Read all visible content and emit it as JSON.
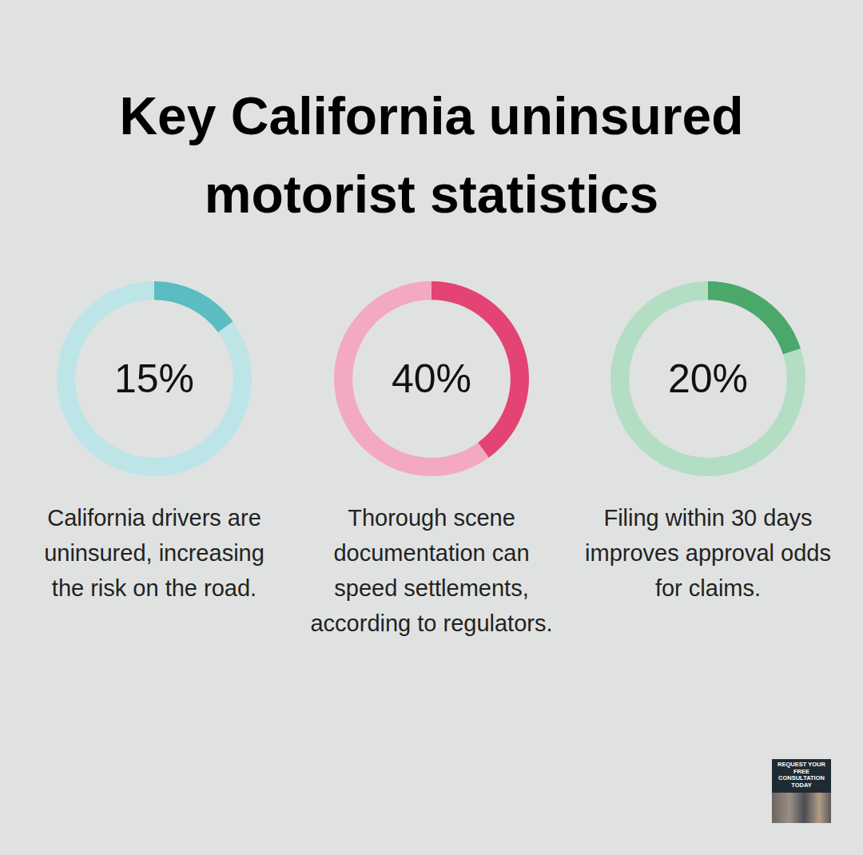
{
  "title": "Key California uninsured motorist statistics",
  "badge": "REQUEST YOUR FREE CONSULTATION TODAY",
  "chart_data": [
    {
      "type": "doughnut",
      "values": [
        15
      ],
      "value_labels": [
        "15%"
      ],
      "ylim": [
        0,
        100
      ],
      "data_labels": true,
      "colors": [
        "#5bbcc1",
        "#bde5e7"
      ],
      "annotation": "California drivers are uninsured, increasing the risk on the road."
    },
    {
      "type": "doughnut",
      "values": [
        40
      ],
      "value_labels": [
        "40%"
      ],
      "ylim": [
        0,
        100
      ],
      "data_labels": true,
      "colors": [
        "#e34474",
        "#f3aac1"
      ],
      "annotation": "Thorough scene documentation can speed settlements, according to regulators."
    },
    {
      "type": "doughnut",
      "values": [
        20
      ],
      "value_labels": [
        "20%"
      ],
      "ylim": [
        0,
        100
      ],
      "data_labels": true,
      "colors": [
        "#4aa86a",
        "#b3dec4"
      ],
      "annotation": "Filing within 30 days improves approval odds for claims."
    }
  ]
}
